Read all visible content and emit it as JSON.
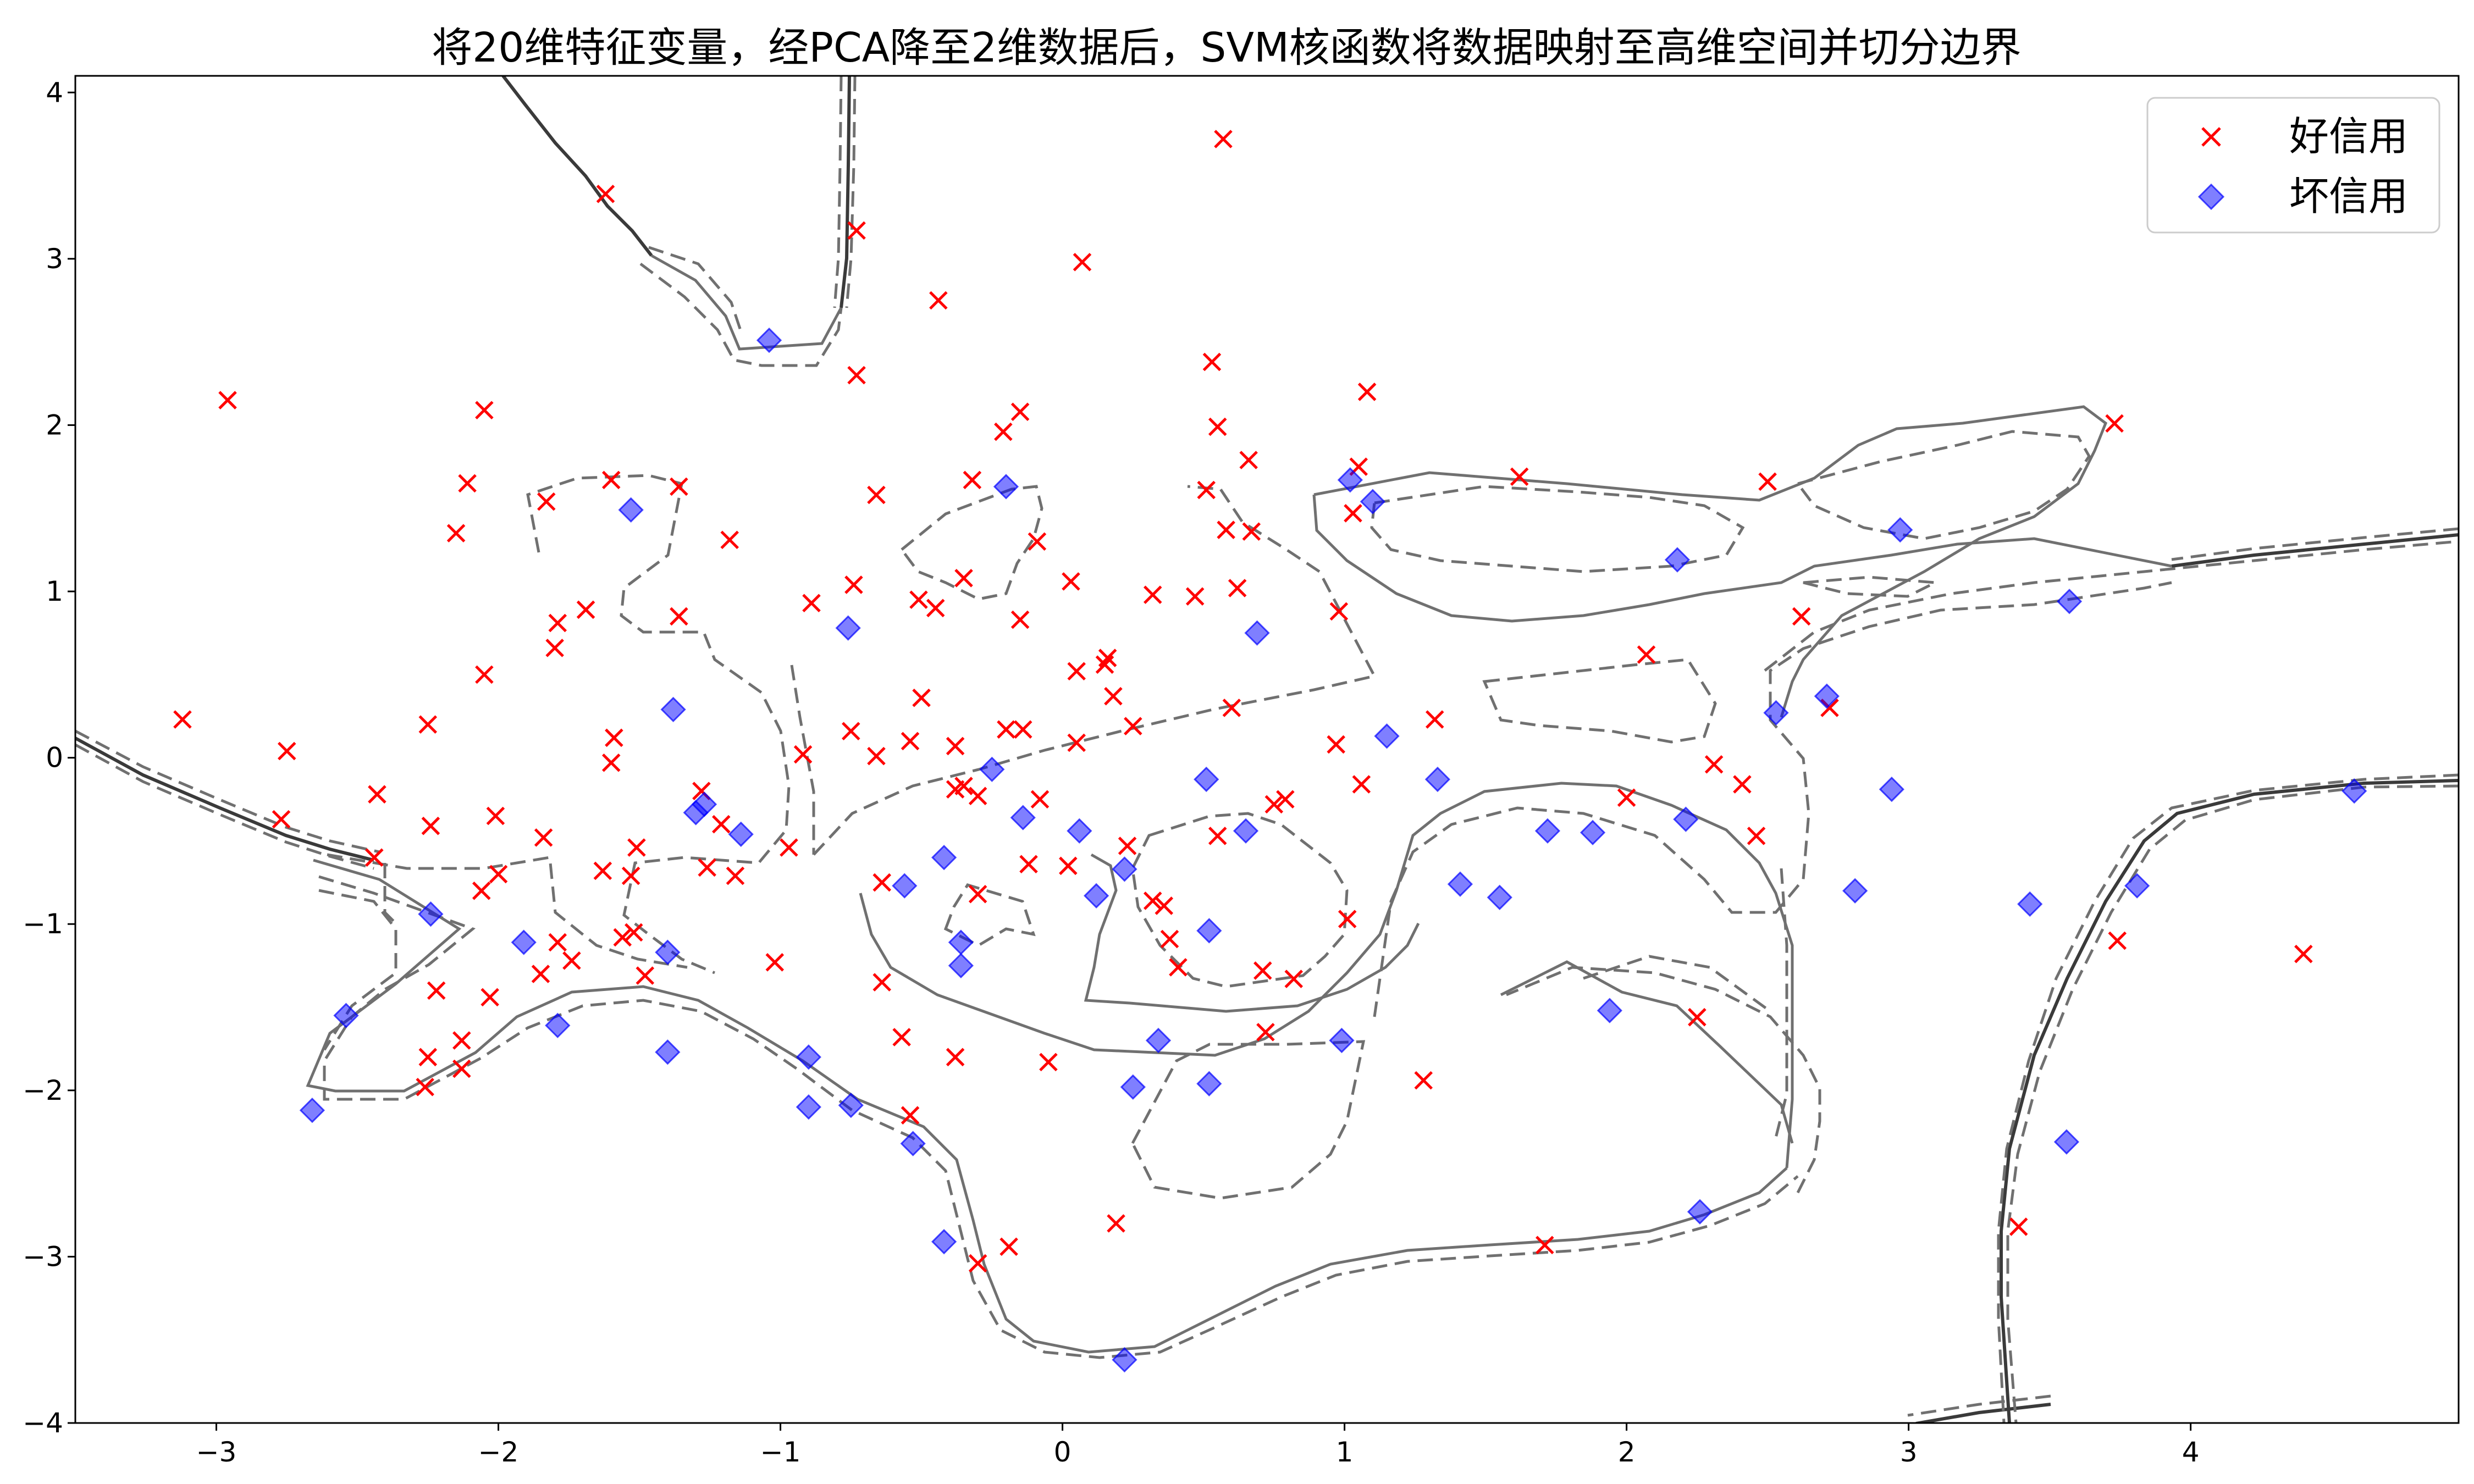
{
  "chart_data": {
    "type": "scatter",
    "title": "将20维特征变量，经PCA降至2维数据后，SVM核函数将数据映射至高维空间并切分边界",
    "xlabel": "",
    "ylabel": "",
    "xlim": [
      -3.5,
      4.95
    ],
    "ylim": [
      -4.0,
      4.1
    ],
    "x_ticks": [
      -3,
      -2,
      -1,
      0,
      1,
      2,
      3,
      4
    ],
    "y_ticks": [
      -4,
      -3,
      -2,
      -1,
      0,
      1,
      2,
      3,
      4
    ],
    "grid": false,
    "legend_position": "top-right",
    "series": [
      {
        "name": "好信用",
        "marker": "x",
        "color": "#ff0000",
        "points": [
          [
            -3.12,
            0.23
          ],
          [
            -2.96,
            2.15
          ],
          [
            -2.75,
            0.04
          ],
          [
            -2.77,
            -0.37
          ],
          [
            -2.43,
            -0.22
          ],
          [
            -2.44,
            -0.6
          ],
          [
            -2.25,
            0.2
          ],
          [
            -2.24,
            -0.41
          ],
          [
            -2.22,
            -1.4
          ],
          [
            -2.25,
            -1.8
          ],
          [
            -2.26,
            -1.98
          ],
          [
            -2.13,
            -1.7
          ],
          [
            -2.13,
            -1.87
          ],
          [
            -2.11,
            1.65
          ],
          [
            -2.15,
            1.35
          ],
          [
            -2.05,
            2.09
          ],
          [
            -2.05,
            0.5
          ],
          [
            -2.06,
            -0.8
          ],
          [
            -2.01,
            -0.35
          ],
          [
            -2.0,
            -0.7
          ],
          [
            -2.03,
            -1.44
          ],
          [
            -1.83,
            1.54
          ],
          [
            -1.84,
            -0.48
          ],
          [
            -1.79,
            0.81
          ],
          [
            -1.8,
            0.66
          ],
          [
            -1.79,
            -1.11
          ],
          [
            -1.74,
            -1.22
          ],
          [
            -1.85,
            -1.3
          ],
          [
            -1.69,
            0.89
          ],
          [
            -1.62,
            3.39
          ],
          [
            -1.6,
            1.67
          ],
          [
            -1.59,
            0.12
          ],
          [
            -1.6,
            -0.03
          ],
          [
            -1.63,
            -0.68
          ],
          [
            -1.53,
            -0.71
          ],
          [
            -1.51,
            -0.54
          ],
          [
            -1.52,
            -1.05
          ],
          [
            -1.56,
            -1.08
          ],
          [
            -1.48,
            -1.31
          ],
          [
            -1.36,
            1.63
          ],
          [
            -1.36,
            0.85
          ],
          [
            -1.28,
            -0.2
          ],
          [
            -1.21,
            -0.4
          ],
          [
            -1.26,
            -0.66
          ],
          [
            -1.18,
            1.31
          ],
          [
            -1.16,
            -0.71
          ],
          [
            -1.02,
            -1.23
          ],
          [
            -0.97,
            -0.54
          ],
          [
            -0.92,
            0.02
          ],
          [
            -0.89,
            0.93
          ],
          [
            -0.73,
            3.17
          ],
          [
            -0.73,
            2.3
          ],
          [
            -0.74,
            1.04
          ],
          [
            -0.75,
            0.16
          ],
          [
            -0.66,
            1.58
          ],
          [
            -0.66,
            0.01
          ],
          [
            -0.64,
            -0.75
          ],
          [
            -0.64,
            -1.35
          ],
          [
            -0.57,
            -1.68
          ],
          [
            -0.54,
            -2.15
          ],
          [
            -0.51,
            0.95
          ],
          [
            -0.45,
            0.9
          ],
          [
            -0.5,
            0.36
          ],
          [
            -0.54,
            0.1
          ],
          [
            -0.44,
            2.75
          ],
          [
            -0.38,
            0.07
          ],
          [
            -0.35,
            -0.17
          ],
          [
            -0.38,
            -0.19
          ],
          [
            -0.38,
            -1.8
          ],
          [
            -0.32,
            1.67
          ],
          [
            -0.35,
            1.08
          ],
          [
            -0.3,
            -0.23
          ],
          [
            -0.3,
            -0.82
          ],
          [
            -0.3,
            -3.04
          ],
          [
            -0.21,
            1.96
          ],
          [
            -0.2,
            0.17
          ],
          [
            -0.19,
            -2.94
          ],
          [
            -0.15,
            2.08
          ],
          [
            -0.15,
            0.83
          ],
          [
            -0.14,
            0.17
          ],
          [
            -0.12,
            -0.64
          ],
          [
            -0.09,
            1.3
          ],
          [
            -0.08,
            -0.25
          ],
          [
            -0.05,
            -1.83
          ],
          [
            0.07,
            2.98
          ],
          [
            0.03,
            1.06
          ],
          [
            0.05,
            0.52
          ],
          [
            0.05,
            0.09
          ],
          [
            0.02,
            -0.65
          ],
          [
            0.15,
            0.56
          ],
          [
            0.16,
            0.6
          ],
          [
            0.18,
            0.37
          ],
          [
            0.25,
            0.19
          ],
          [
            0.23,
            -0.53
          ],
          [
            0.19,
            -2.8
          ],
          [
            0.32,
            0.98
          ],
          [
            0.32,
            -0.86
          ],
          [
            0.36,
            -0.89
          ],
          [
            0.38,
            -1.09
          ],
          [
            0.41,
            -1.26
          ],
          [
            0.47,
            0.97
          ],
          [
            0.51,
            1.61
          ],
          [
            0.53,
            2.38
          ],
          [
            0.55,
            1.99
          ],
          [
            0.57,
            3.72
          ],
          [
            0.55,
            -0.47
          ],
          [
            0.58,
            1.37
          ],
          [
            0.6,
            0.3
          ],
          [
            0.62,
            1.02
          ],
          [
            0.66,
            1.79
          ],
          [
            0.67,
            1.36
          ],
          [
            0.71,
            -1.28
          ],
          [
            0.72,
            -1.65
          ],
          [
            0.75,
            -0.28
          ],
          [
            0.79,
            -0.25
          ],
          [
            0.82,
            -1.33
          ],
          [
            0.97,
            0.08
          ],
          [
            0.98,
            0.88
          ],
          [
            1.01,
            -0.97
          ],
          [
            1.03,
            1.47
          ],
          [
            1.05,
            1.75
          ],
          [
            1.08,
            2.2
          ],
          [
            1.06,
            -0.16
          ],
          [
            1.28,
            -1.94
          ],
          [
            1.32,
            0.23
          ],
          [
            1.62,
            1.69
          ],
          [
            1.71,
            -2.93
          ],
          [
            2.07,
            0.62
          ],
          [
            2.0,
            -0.24
          ],
          [
            2.25,
            -1.56
          ],
          [
            2.31,
            -0.04
          ],
          [
            2.41,
            -0.16
          ],
          [
            2.46,
            -0.47
          ],
          [
            2.5,
            1.66
          ],
          [
            2.62,
            0.85
          ],
          [
            2.72,
            0.3
          ],
          [
            3.73,
            2.01
          ],
          [
            3.74,
            -1.1
          ],
          [
            3.39,
            -2.82
          ],
          [
            4.4,
            -1.18
          ]
        ]
      },
      {
        "name": "坏信用",
        "marker": "diamond",
        "color": "#0000ff",
        "points": [
          [
            -2.66,
            -2.12
          ],
          [
            -2.54,
            -1.55
          ],
          [
            -2.24,
            -0.94
          ],
          [
            -1.91,
            -1.11
          ],
          [
            -1.79,
            -1.61
          ],
          [
            -1.53,
            1.49
          ],
          [
            -1.4,
            -1.17
          ],
          [
            -1.4,
            -1.77
          ],
          [
            -1.38,
            0.29
          ],
          [
            -1.3,
            -0.33
          ],
          [
            -1.27,
            -0.28
          ],
          [
            -1.14,
            -0.46
          ],
          [
            -0.9,
            -1.8
          ],
          [
            -0.9,
            -2.1
          ],
          [
            -0.76,
            0.78
          ],
          [
            -0.75,
            -2.09
          ],
          [
            -0.56,
            -0.77
          ],
          [
            -0.53,
            -2.32
          ],
          [
            -0.42,
            -0.6
          ],
          [
            -0.42,
            -2.91
          ],
          [
            -0.36,
            -1.11
          ],
          [
            -0.36,
            -1.25
          ],
          [
            -0.25,
            -0.07
          ],
          [
            -0.2,
            1.63
          ],
          [
            -1.04,
            2.51
          ],
          [
            -0.14,
            -0.36
          ],
          [
            0.06,
            -0.44
          ],
          [
            0.12,
            -0.83
          ],
          [
            0.22,
            -0.67
          ],
          [
            0.22,
            -3.62
          ],
          [
            0.25,
            -1.98
          ],
          [
            0.34,
            -1.7
          ],
          [
            0.51,
            -0.13
          ],
          [
            0.52,
            -1.04
          ],
          [
            0.52,
            -1.96
          ],
          [
            0.65,
            -0.44
          ],
          [
            0.69,
            0.75
          ],
          [
            0.99,
            -1.7
          ],
          [
            1.02,
            1.67
          ],
          [
            1.1,
            1.54
          ],
          [
            1.15,
            0.13
          ],
          [
            1.33,
            -0.13
          ],
          [
            1.41,
            -0.76
          ],
          [
            1.55,
            -0.84
          ],
          [
            1.72,
            -0.44
          ],
          [
            1.88,
            -0.45
          ],
          [
            1.94,
            -1.52
          ],
          [
            2.18,
            1.19
          ],
          [
            2.21,
            -0.37
          ],
          [
            2.26,
            -2.73
          ],
          [
            2.53,
            0.27
          ],
          [
            2.71,
            0.37
          ],
          [
            2.81,
            -0.8
          ],
          [
            2.94,
            -0.19
          ],
          [
            2.97,
            1.37
          ],
          [
            3.43,
            -0.88
          ],
          [
            3.56,
            -2.31
          ],
          [
            3.57,
            0.94
          ],
          [
            3.81,
            -0.77
          ],
          [
            4.58,
            -0.2
          ]
        ]
      }
    ]
  }
}
